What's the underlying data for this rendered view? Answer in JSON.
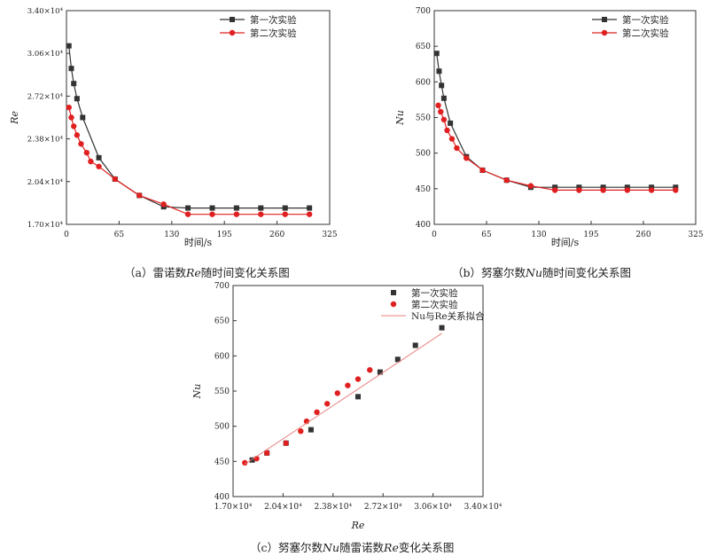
{
  "panels": [
    {
      "id": "a",
      "caption": {
        "prefix": "（a）雷诺数",
        "em": "Re",
        "suffix": "随时间变化关系图"
      },
      "chart_data": {
        "type": "line",
        "xlabel": "时间/s",
        "ylabel": "Re",
        "xlim": [
          0,
          325
        ],
        "ylim": [
          1.7,
          3.4
        ],
        "xticks": [
          "0",
          "65",
          "130",
          "195",
          "260",
          "325"
        ],
        "xtick_values": [
          0,
          65,
          130,
          195,
          260,
          325
        ],
        "yticks": [
          "1.70×10⁴",
          "2.04×10⁴",
          "2.38×10⁴",
          "2.72×10⁴",
          "3.06×10⁴",
          "3.40×10⁴"
        ],
        "ytick_values": [
          1.7,
          2.04,
          2.38,
          2.72,
          3.06,
          3.4
        ],
        "legend_position": "top-right",
        "series": [
          {
            "name": "第一次实验",
            "color": "#333333",
            "marker": "square",
            "x": [
              3,
              6,
              9,
              13,
              20,
              40,
              60,
              90,
              120,
              150,
              180,
              210,
              240,
              270,
              300
            ],
            "y": [
              3.12,
              2.94,
              2.82,
              2.7,
              2.55,
              2.23,
              2.06,
              1.93,
              1.84,
              1.83,
              1.83,
              1.83,
              1.83,
              1.83,
              1.83
            ]
          },
          {
            "name": "第二次实验",
            "color": "#e02020",
            "marker": "circle",
            "x": [
              3,
              6,
              9,
              13,
              18,
              25,
              30,
              40,
              60,
              90,
              120,
              150,
              180,
              210,
              240,
              270,
              300
            ],
            "y": [
              2.63,
              2.55,
              2.48,
              2.41,
              2.34,
              2.27,
              2.2,
              2.16,
              2.06,
              1.93,
              1.86,
              1.78,
              1.78,
              1.78,
              1.78,
              1.78,
              1.78
            ]
          }
        ]
      }
    },
    {
      "id": "b",
      "caption": {
        "prefix": "（b）努塞尔数",
        "em": "Nu",
        "suffix": "随时间变化关系图"
      },
      "chart_data": {
        "type": "line",
        "xlabel": "时间/s",
        "ylabel": "Nu",
        "xlim": [
          0,
          325
        ],
        "ylim": [
          400,
          700
        ],
        "xticks": [
          "0",
          "65",
          "130",
          "195",
          "260",
          "325"
        ],
        "xtick_values": [
          0,
          65,
          130,
          195,
          260,
          325
        ],
        "yticks": [
          "400",
          "450",
          "500",
          "550",
          "600",
          "650",
          "700"
        ],
        "ytick_values": [
          400,
          450,
          500,
          550,
          600,
          650,
          700
        ],
        "legend_position": "top-right",
        "series": [
          {
            "name": "第一次实验",
            "color": "#333333",
            "marker": "square",
            "x": [
              3,
              6,
              9,
              12,
              20,
              40,
              60,
              90,
              120,
              150,
              180,
              210,
              240,
              270,
              300
            ],
            "y": [
              640,
              615,
              595,
              577,
              542,
              495,
              476,
              462,
              452,
              452,
              452,
              452,
              452,
              452,
              452
            ]
          },
          {
            "name": "第二次实验",
            "color": "#e02020",
            "marker": "circle",
            "x": [
              5,
              8,
              12,
              16,
              22,
              28,
              40,
              60,
              90,
              120,
              150,
              180,
              210,
              240,
              270,
              300
            ],
            "y": [
              567,
              558,
              547,
              532,
              520,
              507,
              493,
              476,
              462,
              454,
              448,
              448,
              448,
              448,
              448,
              448
            ]
          }
        ]
      }
    },
    {
      "id": "c",
      "caption": {
        "prefix": "（c）努塞尔数",
        "em": "Nu",
        "mid": "随雷诺数",
        "em2": "Re",
        "suffix": "变化关系图"
      },
      "chart_data": {
        "type": "scatter",
        "xlabel": "Re",
        "ylabel": "Nu",
        "xlim": [
          1.7,
          3.4
        ],
        "ylim": [
          400,
          700
        ],
        "xticks": [
          "1.70×10⁴",
          "2.04×10⁴",
          "2.38×10⁴",
          "2.72×10⁴",
          "3.06×10⁴",
          "3.40×10⁴"
        ],
        "xtick_values": [
          1.7,
          2.04,
          2.38,
          2.72,
          3.06,
          3.4
        ],
        "yticks": [
          "400",
          "450",
          "500",
          "550",
          "600",
          "650",
          "700"
        ],
        "ytick_values": [
          400,
          450,
          500,
          550,
          600,
          650,
          700
        ],
        "legend_position": "top-right",
        "series": [
          {
            "name": "第一次实验",
            "color": "#333333",
            "marker": "square",
            "x": [
              1.83,
              1.93,
              2.06,
              2.23,
              2.55,
              2.7,
              2.82,
              2.94,
              3.12
            ],
            "y": [
              452,
              462,
              476,
              495,
              542,
              577,
              595,
              615,
              640
            ]
          },
          {
            "name": "第二次实验",
            "color": "#e02020",
            "marker": "circle",
            "x": [
              1.78,
              1.86,
              1.93,
              2.06,
              2.16,
              2.2,
              2.27,
              2.34,
              2.41,
              2.48,
              2.55,
              2.63
            ],
            "y": [
              448,
              454,
              462,
              476,
              493,
              507,
              520,
              532,
              547,
              558,
              567,
              580
            ]
          },
          {
            "name": "Nu与Re关系拟合",
            "color": "#e88080",
            "marker": "line",
            "x": [
              1.78,
              3.12
            ],
            "y": [
              446,
              632
            ]
          }
        ]
      }
    }
  ]
}
